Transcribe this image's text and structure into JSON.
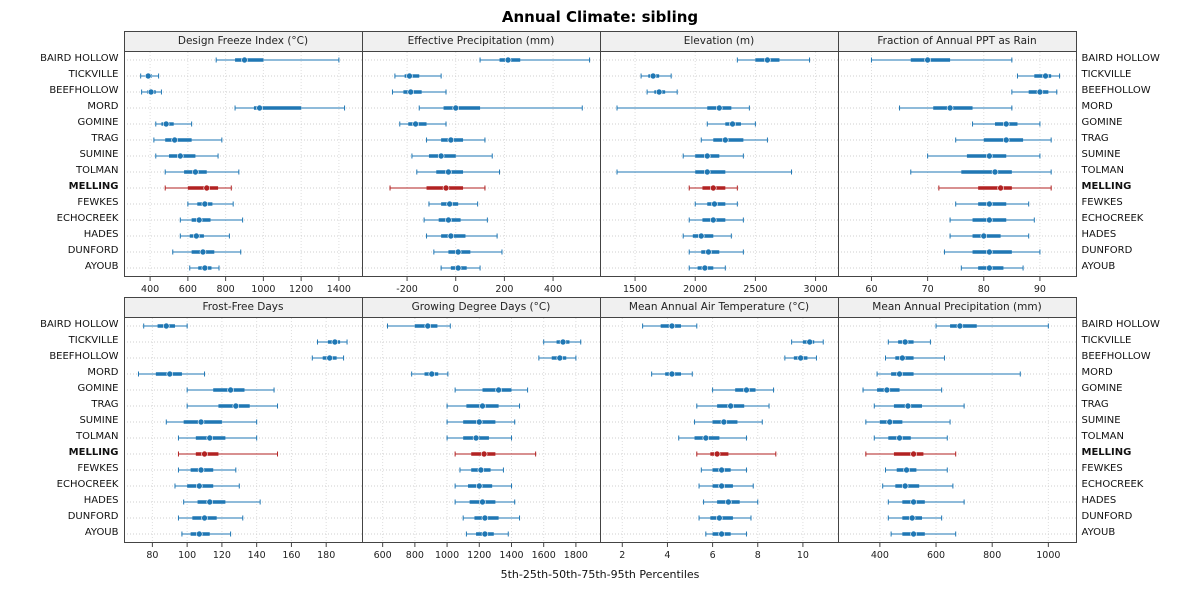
{
  "chart_data": {
    "type": "dotplot-percentile-trellis",
    "title": "Annual Climate: sibling",
    "caption": "5th-25th-50th-75th-95th Percentiles",
    "percentiles": [
      5,
      25,
      50,
      75,
      95
    ],
    "highlight_station": "MELLING",
    "colors": {
      "normal": "#1f77b4",
      "highlight": "#b22222",
      "grid_h": "#cfcfcf",
      "grid_v": "#dedede",
      "strip_bg": "#f0f0f0",
      "border": "#444444"
    },
    "stations": [
      "BAIRD HOLLOW",
      "TICKVILLE",
      "BEEFHOLLOW",
      "MORD",
      "GOMINE",
      "TRAG",
      "SUMINE",
      "TOLMAN",
      "MELLING",
      "FEWKES",
      "ECHOCREEK",
      "HADES",
      "DUNFORD",
      "AYOUB"
    ],
    "panels": [
      {
        "title": "Design Freeze Index (°C)",
        "xmin": 320,
        "xmax": 1480,
        "ticks": [
          400,
          600,
          800,
          1000,
          1200,
          1400
        ],
        "values": [
          [
            750,
            850,
            900,
            1000,
            1400
          ],
          [
            350,
            375,
            390,
            410,
            445
          ],
          [
            355,
            385,
            405,
            430,
            460
          ],
          [
            850,
            950,
            980,
            1200,
            1430
          ],
          [
            430,
            460,
            485,
            525,
            620
          ],
          [
            420,
            480,
            530,
            620,
            780
          ],
          [
            430,
            500,
            560,
            640,
            760
          ],
          [
            480,
            580,
            640,
            700,
            870
          ],
          [
            480,
            600,
            700,
            760,
            830
          ],
          [
            600,
            650,
            690,
            730,
            840
          ],
          [
            560,
            620,
            660,
            720,
            890
          ],
          [
            560,
            610,
            645,
            685,
            820
          ],
          [
            520,
            620,
            680,
            740,
            880
          ],
          [
            610,
            655,
            690,
            725,
            765
          ]
        ]
      },
      {
        "title": "Effective Precipitation (mm)",
        "xmin": -340,
        "xmax": 560,
        "ticks": [
          -200,
          0,
          200,
          400
        ],
        "values": [
          [
            100,
            180,
            215,
            265,
            550
          ],
          [
            -250,
            -210,
            -190,
            -150,
            -60
          ],
          [
            -260,
            -215,
            -185,
            -140,
            -40
          ],
          [
            -150,
            -50,
            0,
            100,
            520
          ],
          [
            -230,
            -195,
            -165,
            -120,
            -40
          ],
          [
            -120,
            -60,
            -20,
            30,
            120
          ],
          [
            -180,
            -110,
            -60,
            0,
            150
          ],
          [
            -160,
            -80,
            -30,
            30,
            180
          ],
          [
            -270,
            -120,
            -40,
            30,
            120
          ],
          [
            -110,
            -60,
            -25,
            10,
            90
          ],
          [
            -130,
            -70,
            -30,
            20,
            130
          ],
          [
            -120,
            -60,
            -20,
            40,
            170
          ],
          [
            -90,
            -30,
            10,
            60,
            190
          ],
          [
            -60,
            -20,
            10,
            45,
            100
          ]
        ]
      },
      {
        "title": "Elevation (m)",
        "xmin": 1300,
        "xmax": 3120,
        "ticks": [
          1500,
          2000,
          2500,
          3000
        ],
        "values": [
          [
            2350,
            2500,
            2600,
            2700,
            2950
          ],
          [
            1550,
            1610,
            1650,
            1700,
            1800
          ],
          [
            1600,
            1660,
            1700,
            1750,
            1850
          ],
          [
            1350,
            2100,
            2200,
            2300,
            2450
          ],
          [
            2100,
            2250,
            2310,
            2380,
            2500
          ],
          [
            2050,
            2150,
            2250,
            2400,
            2600
          ],
          [
            1900,
            2000,
            2100,
            2200,
            2400
          ],
          [
            1350,
            2000,
            2100,
            2250,
            2800
          ],
          [
            1950,
            2060,
            2150,
            2250,
            2350
          ],
          [
            2000,
            2100,
            2160,
            2250,
            2350
          ],
          [
            1950,
            2060,
            2150,
            2250,
            2400
          ],
          [
            1900,
            1980,
            2050,
            2150,
            2300
          ],
          [
            1950,
            2050,
            2110,
            2200,
            2400
          ],
          [
            1950,
            2020,
            2080,
            2150,
            2250
          ]
        ]
      },
      {
        "title": "Fraction of Annual PPT as Rain",
        "xmin": 56,
        "xmax": 95,
        "ticks": [
          60,
          70,
          80,
          90
        ],
        "values": [
          [
            60,
            67,
            70,
            74,
            85
          ],
          [
            86,
            89,
            91,
            92,
            93.5
          ],
          [
            85,
            88,
            90,
            91.5,
            93
          ],
          [
            65,
            71,
            74,
            78,
            85
          ],
          [
            78,
            82,
            84,
            86,
            90
          ],
          [
            75,
            80,
            84,
            87,
            92
          ],
          [
            70,
            77,
            81,
            84,
            90
          ],
          [
            67,
            76,
            82,
            85,
            92
          ],
          [
            72,
            79,
            83,
            85,
            92
          ],
          [
            75,
            79,
            81,
            84,
            88
          ],
          [
            74,
            78,
            81,
            84,
            89
          ],
          [
            74,
            78,
            80,
            83,
            88
          ],
          [
            73,
            78,
            81,
            85,
            90
          ],
          [
            76,
            79,
            81,
            83.5,
            87
          ]
        ]
      },
      {
        "title": "Frost-Free Days",
        "xmin": 70,
        "xmax": 196,
        "ticks": [
          80,
          100,
          120,
          140,
          160,
          180
        ],
        "values": [
          [
            75,
            83,
            88,
            93,
            100
          ],
          [
            175,
            181,
            185,
            188,
            192
          ],
          [
            172,
            178,
            182,
            186,
            190
          ],
          [
            72,
            82,
            90,
            97,
            110
          ],
          [
            100,
            115,
            125,
            133,
            150
          ],
          [
            100,
            118,
            128,
            136,
            152
          ],
          [
            88,
            98,
            108,
            120,
            140
          ],
          [
            95,
            105,
            113,
            122,
            140
          ],
          [
            95,
            105,
            110,
            118,
            152
          ],
          [
            95,
            102,
            108,
            115,
            128
          ],
          [
            93,
            100,
            107,
            115,
            130
          ],
          [
            98,
            106,
            113,
            122,
            142
          ],
          [
            95,
            103,
            110,
            117,
            132
          ],
          [
            97,
            102,
            107,
            113,
            125
          ]
        ]
      },
      {
        "title": "Growing Degree Days (°C)",
        "xmin": 540,
        "xmax": 1900,
        "ticks": [
          600,
          800,
          1000,
          1200,
          1400,
          1600,
          1800
        ],
        "values": [
          [
            630,
            800,
            880,
            940,
            1020
          ],
          [
            1600,
            1680,
            1720,
            1760,
            1830
          ],
          [
            1570,
            1650,
            1700,
            1740,
            1800
          ],
          [
            780,
            860,
            905,
            945,
            1005
          ],
          [
            1050,
            1220,
            1320,
            1400,
            1500
          ],
          [
            1000,
            1120,
            1220,
            1320,
            1450
          ],
          [
            1000,
            1100,
            1200,
            1300,
            1420
          ],
          [
            1000,
            1100,
            1180,
            1260,
            1400
          ],
          [
            1050,
            1150,
            1230,
            1300,
            1550
          ],
          [
            1080,
            1150,
            1210,
            1270,
            1350
          ],
          [
            1050,
            1130,
            1200,
            1280,
            1400
          ],
          [
            1050,
            1140,
            1220,
            1300,
            1420
          ],
          [
            1100,
            1170,
            1235,
            1320,
            1450
          ],
          [
            1120,
            1180,
            1235,
            1290,
            1380
          ]
        ]
      },
      {
        "title": "Mean Annual Air Temperature (°C)",
        "xmin": 1.5,
        "xmax": 11.2,
        "ticks": [
          2,
          4,
          6,
          8,
          10
        ],
        "values": [
          [
            2.9,
            3.7,
            4.2,
            4.6,
            5.3
          ],
          [
            9.5,
            10.0,
            10.3,
            10.5,
            10.9
          ],
          [
            9.2,
            9.6,
            9.9,
            10.2,
            10.6
          ],
          [
            3.3,
            3.9,
            4.2,
            4.6,
            5.1
          ],
          [
            6.0,
            7.0,
            7.5,
            7.9,
            8.7
          ],
          [
            5.3,
            6.2,
            6.8,
            7.4,
            8.5
          ],
          [
            5.2,
            6.0,
            6.5,
            7.1,
            8.2
          ],
          [
            4.5,
            5.2,
            5.7,
            6.3,
            7.5
          ],
          [
            5.3,
            5.9,
            6.2,
            6.7,
            8.8
          ],
          [
            5.5,
            6.0,
            6.4,
            6.8,
            7.5
          ],
          [
            5.4,
            6.0,
            6.4,
            6.9,
            7.8
          ],
          [
            5.6,
            6.2,
            6.7,
            7.2,
            8.0
          ],
          [
            5.4,
            5.9,
            6.3,
            6.9,
            7.7
          ],
          [
            5.7,
            6.0,
            6.4,
            6.8,
            7.5
          ]
        ]
      },
      {
        "title": "Mean Annual Precipitation (mm)",
        "xmin": 290,
        "xmax": 1070,
        "ticks": [
          400,
          600,
          800,
          1000
        ],
        "values": [
          [
            600,
            650,
            685,
            745,
            1000
          ],
          [
            430,
            465,
            490,
            520,
            580
          ],
          [
            420,
            455,
            480,
            520,
            630
          ],
          [
            390,
            440,
            470,
            520,
            900
          ],
          [
            340,
            390,
            425,
            470,
            620
          ],
          [
            380,
            450,
            500,
            550,
            700
          ],
          [
            350,
            400,
            435,
            480,
            650
          ],
          [
            380,
            430,
            470,
            510,
            640
          ],
          [
            350,
            450,
            520,
            555,
            670
          ],
          [
            420,
            460,
            495,
            530,
            640
          ],
          [
            410,
            455,
            490,
            540,
            660
          ],
          [
            430,
            480,
            520,
            560,
            700
          ],
          [
            430,
            480,
            515,
            550,
            620
          ],
          [
            440,
            480,
            520,
            560,
            670
          ]
        ]
      }
    ]
  }
}
